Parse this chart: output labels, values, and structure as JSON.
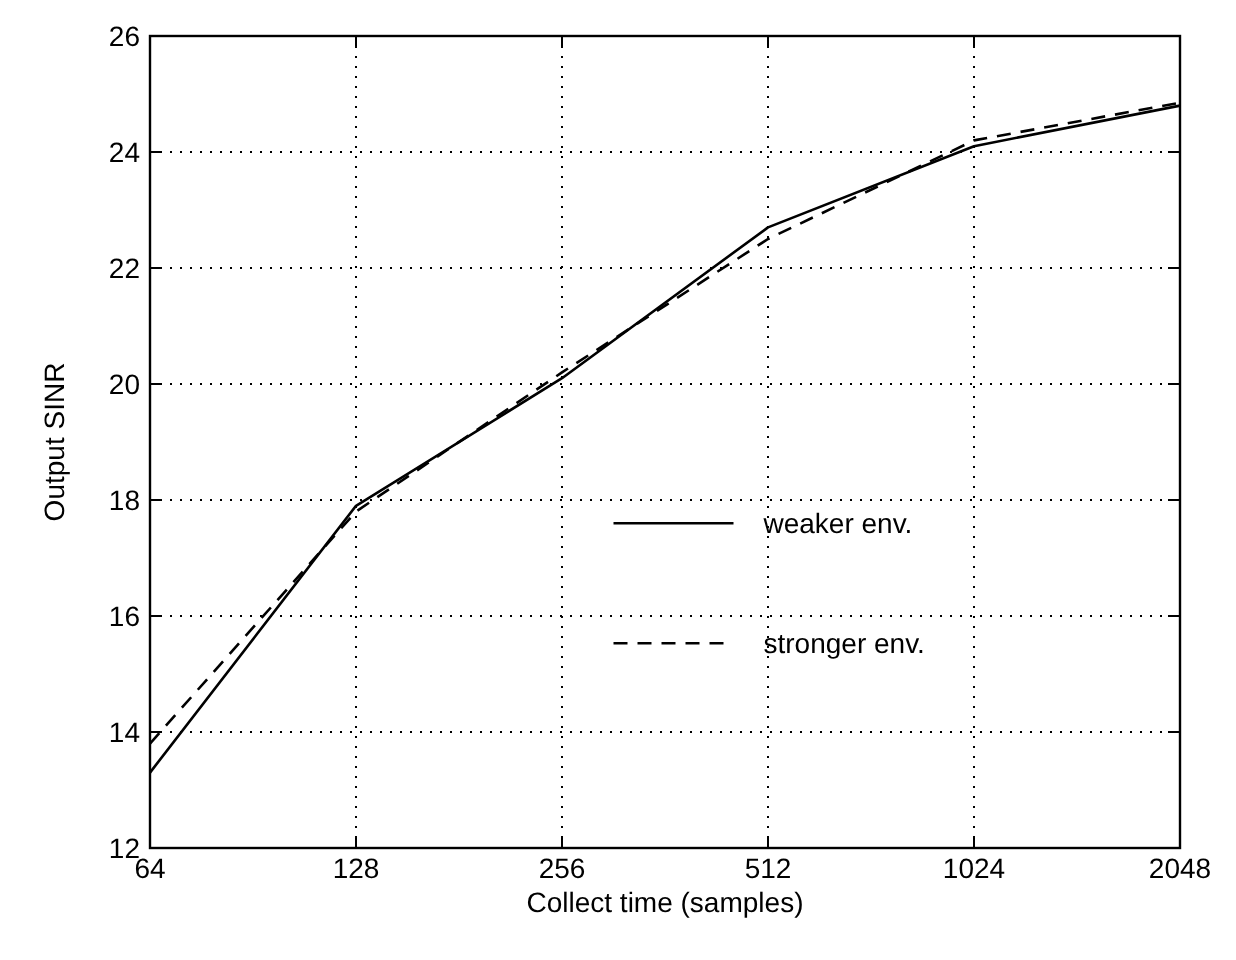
{
  "chart_data": {
    "type": "line",
    "xlabel": "Collect time (samples)",
    "ylabel": "Output SINR",
    "log": "x",
    "x": [
      64,
      128,
      256,
      512,
      1024,
      2048
    ],
    "xlim": [
      64,
      2048
    ],
    "xticks": [
      64,
      128,
      256,
      512,
      1024,
      2048
    ],
    "ylim": [
      12,
      26
    ],
    "yticks": [
      12,
      14,
      16,
      18,
      20,
      22,
      24,
      26
    ],
    "grid": true,
    "legend": "right",
    "series": [
      {
        "name": "weaker env.",
        "color": "#000000",
        "line_style": "solid",
        "values": [
          13.3,
          17.9,
          20.1,
          22.7,
          24.1,
          24.8
        ]
      },
      {
        "name": "stronger env.",
        "color": "#000000",
        "line_style": "dashed",
        "values": [
          13.8,
          17.8,
          20.2,
          22.5,
          24.2,
          24.85
        ]
      }
    ]
  }
}
